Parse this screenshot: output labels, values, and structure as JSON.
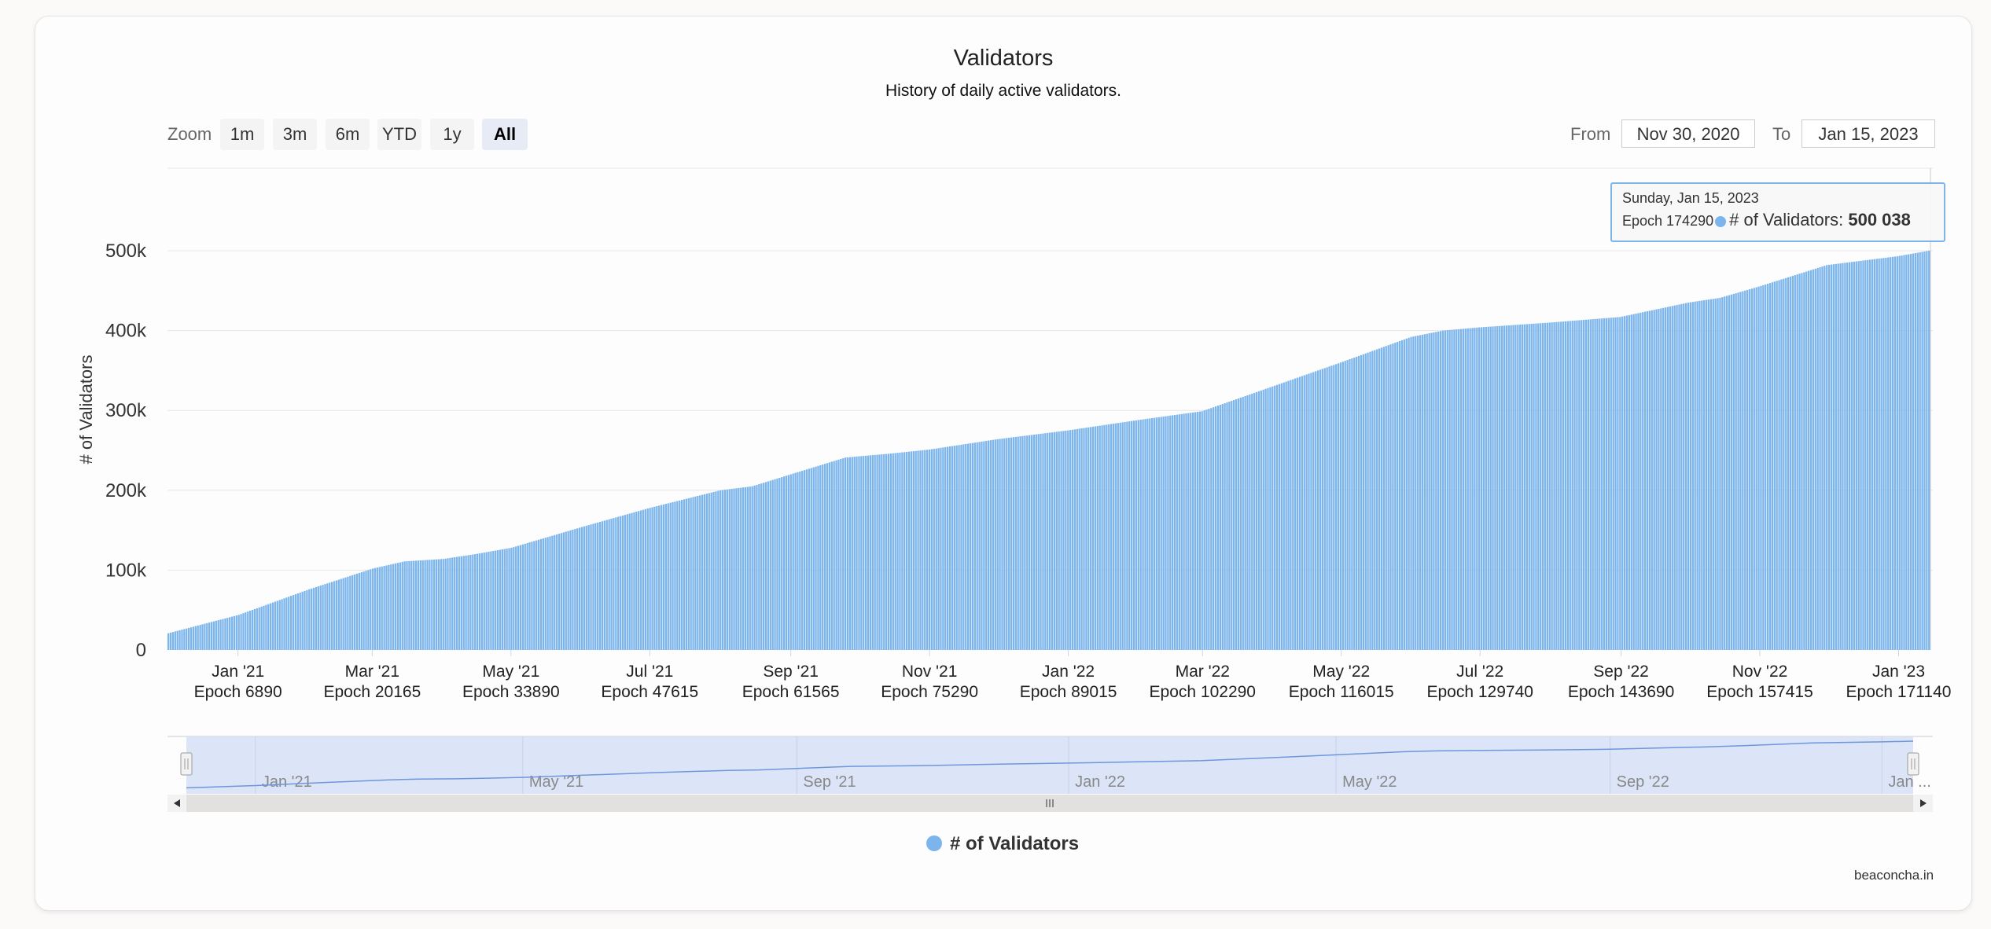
{
  "chart_data": {
    "type": "bar",
    "title": "Validators",
    "subtitle": "History of daily active validators.",
    "ylabel": "# of Validators",
    "xlabel": "",
    "ylim": [
      0,
      600000
    ],
    "yticks": [
      0,
      100000,
      200000,
      300000,
      400000,
      500000
    ],
    "ytick_labels": [
      "0",
      "100k",
      "200k",
      "300k",
      "400k",
      "500k"
    ],
    "x_start": "2020-12-01",
    "x_end": "2023-01-15",
    "x_ticks": [
      {
        "date": "2021-01-01",
        "label": "Jan '21",
        "sub": "Epoch 6890"
      },
      {
        "date": "2021-03-01",
        "label": "Mar '21",
        "sub": "Epoch 20165"
      },
      {
        "date": "2021-05-01",
        "label": "May '21",
        "sub": "Epoch 33890"
      },
      {
        "date": "2021-07-01",
        "label": "Jul '21",
        "sub": "Epoch 47615"
      },
      {
        "date": "2021-09-01",
        "label": "Sep '21",
        "sub": "Epoch 61565"
      },
      {
        "date": "2021-11-01",
        "label": "Nov '21",
        "sub": "Epoch 75290"
      },
      {
        "date": "2022-01-01",
        "label": "Jan '22",
        "sub": "Epoch 89015"
      },
      {
        "date": "2022-03-01",
        "label": "Mar '22",
        "sub": "Epoch 102290"
      },
      {
        "date": "2022-05-01",
        "label": "May '22",
        "sub": "Epoch 116015"
      },
      {
        "date": "2022-07-01",
        "label": "Jul '22",
        "sub": "Epoch 129740"
      },
      {
        "date": "2022-09-01",
        "label": "Sep '22",
        "sub": "Epoch 143690"
      },
      {
        "date": "2022-11-01",
        "label": "Nov '22",
        "sub": "Epoch 157415"
      },
      {
        "date": "2023-01-01",
        "label": "Jan '23",
        "sub": "Epoch 171140"
      }
    ],
    "series": [
      {
        "name": "# of Validators",
        "color": "#7cb5ec",
        "points": [
          [
            "2020-12-01",
            21000
          ],
          [
            "2021-01-01",
            44000
          ],
          [
            "2021-02-01",
            76000
          ],
          [
            "2021-03-01",
            102000
          ],
          [
            "2021-03-15",
            111000
          ],
          [
            "2021-04-01",
            114000
          ],
          [
            "2021-04-15",
            120000
          ],
          [
            "2021-05-01",
            128000
          ],
          [
            "2021-06-01",
            154000
          ],
          [
            "2021-07-01",
            178000
          ],
          [
            "2021-08-01",
            200000
          ],
          [
            "2021-08-15",
            205000
          ],
          [
            "2021-09-01",
            220000
          ],
          [
            "2021-09-25",
            241000
          ],
          [
            "2021-10-15",
            246000
          ],
          [
            "2021-11-01",
            251000
          ],
          [
            "2021-12-01",
            264000
          ],
          [
            "2022-01-01",
            275000
          ],
          [
            "2022-02-01",
            288000
          ],
          [
            "2022-03-01",
            299000
          ],
          [
            "2022-04-01",
            330000
          ],
          [
            "2022-05-01",
            360000
          ],
          [
            "2022-06-01",
            392000
          ],
          [
            "2022-06-15",
            400000
          ],
          [
            "2022-07-01",
            404000
          ],
          [
            "2022-08-01",
            410000
          ],
          [
            "2022-09-01",
            417000
          ],
          [
            "2022-10-01",
            435000
          ],
          [
            "2022-10-15",
            441000
          ],
          [
            "2022-11-01",
            455000
          ],
          [
            "2022-12-01",
            482000
          ],
          [
            "2023-01-01",
            493000
          ],
          [
            "2023-01-15",
            500038
          ]
        ]
      }
    ],
    "legend": {
      "position": "bottom-center",
      "entries": [
        "# of Validators"
      ]
    },
    "grid": true,
    "navigator_ticks": [
      {
        "date": "2021-01-01",
        "label": "Jan '21"
      },
      {
        "date": "2021-05-01",
        "label": "May '21"
      },
      {
        "date": "2021-09-01",
        "label": "Sep '21"
      },
      {
        "date": "2022-01-01",
        "label": "Jan '22"
      },
      {
        "date": "2022-05-01",
        "label": "May '22"
      },
      {
        "date": "2022-09-01",
        "label": "Sep '22"
      },
      {
        "date": "2023-01-01",
        "label": "Jan ..."
      }
    ]
  },
  "range_selector": {
    "zoom_label": "Zoom",
    "buttons": [
      "1m",
      "3m",
      "6m",
      "YTD",
      "1y",
      "All"
    ],
    "active": "All",
    "from_label": "From",
    "from_value": "Nov 30, 2020",
    "to_label": "To",
    "to_value": "Jan 15, 2023"
  },
  "tooltip": {
    "date": "Sunday, Jan 15, 2023",
    "epoch": "Epoch 174290",
    "series_label": "# of Validators: ",
    "value": "500 038"
  },
  "legend_label": "# of Validators",
  "credits": "beaconcha.in",
  "colors": {
    "series": "#7cb5ec",
    "navigator_mask": "#d6e0f7",
    "scrollbar": "#e3e0e0"
  }
}
